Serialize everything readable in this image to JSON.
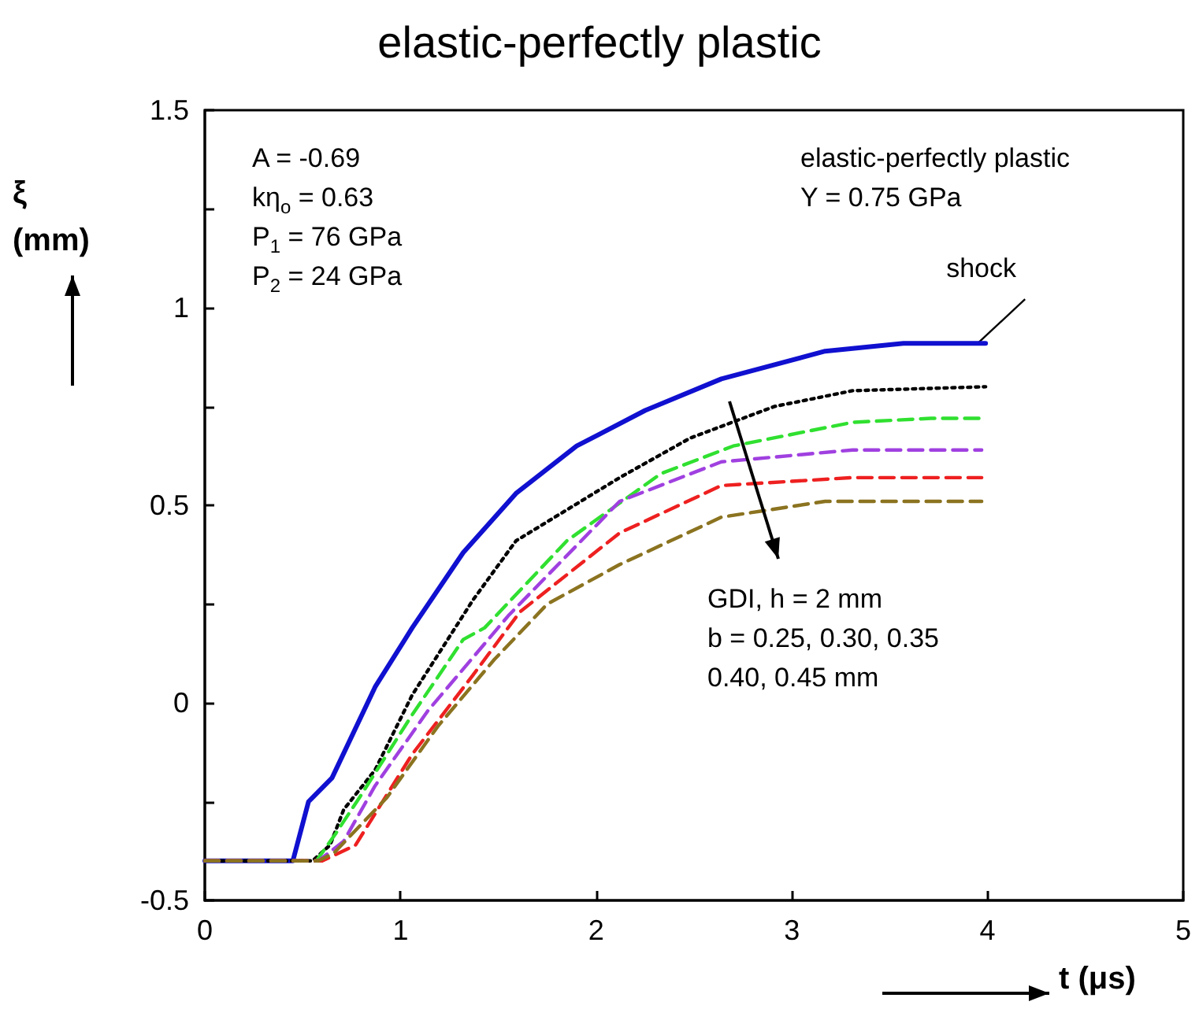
{
  "chart_data": {
    "type": "line",
    "title": "elastic-perfectly plastic",
    "xlabel": "t (μs)",
    "ylabel": "ξ (mm)",
    "xlim": [
      0,
      5
    ],
    "xticks": [
      0,
      1,
      2,
      3,
      4,
      5
    ],
    "ylim": [
      -0.5,
      1.5
    ],
    "yticks": [
      -0.5,
      {
        "value": -0.25,
        "label": null
      },
      0,
      {
        "value": 0.25,
        "label": null
      },
      0.5,
      {
        "value": 0.75,
        "label": null
      },
      1,
      {
        "value": 1.25,
        "label": null
      },
      1.5
    ],
    "grid": false,
    "marker": "none",
    "annotations": [
      "A = -0.69\nkη$_{o}$ = 0.63\nP$_{1}$ = 76 GPa\nP$_{2}$ = 24 GPa",
      "elastic-perfectly plastic\nY = 0.75 GPa",
      "GDI, h = 2 mm\nb = 0.25, 0.30, 0.35\n0.40, 0.45 mm",
      {
        "text": "shock",
        "x": 3.95,
        "y": 0.91
      }
    ],
    "series": [
      {
        "color": "#1010d0",
        "line_style": "solid",
        "x": [
          0,
          0.45,
          0.53,
          0.65,
          0.87,
          1.06,
          1.32,
          1.59,
          1.9,
          2.25,
          2.64,
          3.17,
          3.57,
          3.99
        ],
        "values": [
          -0.4,
          -0.4,
          -0.25,
          -0.19,
          0.04,
          0.19,
          0.38,
          0.53,
          0.65,
          0.74,
          0.82,
          0.89,
          0.91,
          0.91
        ]
      },
      {
        "color": "#000000",
        "line_style": "dotted",
        "x": [
          0,
          0.55,
          0.64,
          0.71,
          0.87,
          1.06,
          1.37,
          1.59,
          2.12,
          2.48,
          2.91,
          3.31,
          3.99
        ],
        "values": [
          -0.4,
          -0.4,
          -0.36,
          -0.27,
          -0.17,
          0.02,
          0.26,
          0.41,
          0.57,
          0.67,
          0.75,
          0.79,
          0.8
        ]
      },
      {
        "color": "#30e030",
        "line_style": "dashed",
        "x": [
          0,
          0.57,
          0.67,
          0.79,
          1.06,
          1.32,
          1.43,
          1.85,
          2.33,
          2.7,
          3.31,
          3.71,
          3.99
        ],
        "values": [
          -0.4,
          -0.4,
          -0.33,
          -0.24,
          -0.03,
          0.16,
          0.19,
          0.41,
          0.58,
          0.65,
          0.71,
          0.72,
          0.72
        ]
      },
      {
        "color": "#a040e0",
        "line_style": "dashed",
        "x": [
          0,
          0.58,
          0.71,
          0.87,
          1.14,
          1.55,
          2.12,
          2.64,
          3.31,
          3.97
        ],
        "values": [
          -0.4,
          -0.4,
          -0.35,
          -0.21,
          -0.02,
          0.22,
          0.51,
          0.61,
          0.64,
          0.64
        ]
      },
      {
        "color": "#ee2020",
        "line_style": "dashed",
        "x": [
          0,
          0.6,
          0.77,
          1.06,
          1.37,
          1.61,
          2.12,
          2.64,
          3.31,
          3.97
        ],
        "values": [
          -0.4,
          -0.4,
          -0.36,
          -0.13,
          0.07,
          0.23,
          0.43,
          0.55,
          0.57,
          0.57
        ]
      },
      {
        "color": "#8b7320",
        "line_style": "dashed",
        "x": [
          0,
          0.58,
          0.66,
          0.93,
          1.19,
          1.48,
          1.75,
          2.12,
          2.64,
          3.17,
          3.97
        ],
        "values": [
          -0.4,
          -0.4,
          -0.38,
          -0.24,
          -0.06,
          0.11,
          0.25,
          0.35,
          0.47,
          0.51,
          0.51
        ]
      }
    ]
  }
}
